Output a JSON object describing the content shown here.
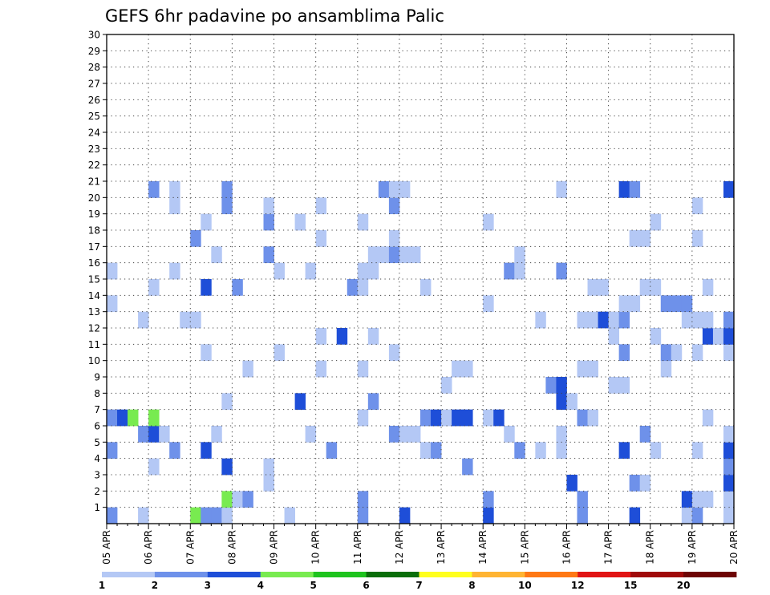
{
  "chart_data": {
    "type": "heatmap",
    "title": "GEFS 6hr padavine po ansamblima Palic",
    "x_tick_labels": [
      "05 APR",
      "06 APR",
      "07 APR",
      "08 APR",
      "09 APR",
      "10 APR",
      "11 APR",
      "12 APR",
      "13 APR",
      "14 APR",
      "15 APR",
      "16 APR",
      "17 APR",
      "18 APR",
      "19 APR",
      "20 APR"
    ],
    "y_tick_labels": [
      "1",
      "2",
      "3",
      "4",
      "5",
      "6",
      "7",
      "8",
      "9",
      "10",
      "11",
      "12",
      "13",
      "14",
      "15",
      "16",
      "17",
      "18",
      "19",
      "20",
      "21",
      "22",
      "23",
      "24",
      "25",
      "26",
      "27",
      "28",
      "29",
      "30"
    ],
    "steps_per_day": 4,
    "days_span": 15,
    "members": 30,
    "grid": "dotted",
    "legend_position": "bottom",
    "legend_labels": [
      "1",
      "2",
      "3",
      "4",
      "5",
      "6",
      "7",
      "8",
      "10",
      "12",
      "15",
      "20"
    ],
    "color_levels": [
      "#b4c8f5",
      "#6e91ea",
      "#1e4ed8",
      "#78eb50",
      "#1ec31e",
      "#0a6e0a",
      "#ffff1e",
      "#ffb432",
      "#ff7814",
      "#e11414",
      "#a00a0a",
      "#6e0505"
    ],
    "cells": [
      [
        0,
        0,
        1
      ],
      [
        0,
        3,
        0
      ],
      [
        0,
        8,
        3
      ],
      [
        0,
        9,
        1
      ],
      [
        0,
        10,
        1
      ],
      [
        0,
        11,
        0
      ],
      [
        0,
        17,
        0
      ],
      [
        0,
        24,
        1
      ],
      [
        0,
        28,
        2
      ],
      [
        0,
        36,
        2
      ],
      [
        0,
        45,
        1
      ],
      [
        0,
        50,
        2
      ],
      [
        0,
        55,
        0
      ],
      [
        0,
        56,
        1
      ],
      [
        0,
        59,
        0
      ],
      [
        1,
        11,
        3
      ],
      [
        1,
        12,
        0
      ],
      [
        1,
        13,
        1
      ],
      [
        1,
        24,
        1
      ],
      [
        1,
        36,
        1
      ],
      [
        1,
        45,
        1
      ],
      [
        1,
        55,
        2
      ],
      [
        1,
        56,
        0
      ],
      [
        1,
        57,
        0
      ],
      [
        1,
        59,
        0
      ],
      [
        2,
        15,
        0
      ],
      [
        2,
        44,
        2
      ],
      [
        2,
        50,
        1
      ],
      [
        2,
        51,
        0
      ],
      [
        2,
        59,
        2
      ],
      [
        3,
        4,
        0
      ],
      [
        3,
        11,
        2
      ],
      [
        3,
        15,
        0
      ],
      [
        3,
        34,
        1
      ],
      [
        3,
        59,
        1
      ],
      [
        4,
        0,
        1
      ],
      [
        4,
        6,
        1
      ],
      [
        4,
        9,
        2
      ],
      [
        4,
        21,
        1
      ],
      [
        4,
        30,
        0
      ],
      [
        4,
        31,
        1
      ],
      [
        4,
        39,
        1
      ],
      [
        4,
        41,
        0
      ],
      [
        4,
        43,
        0
      ],
      [
        4,
        49,
        2
      ],
      [
        4,
        52,
        0
      ],
      [
        4,
        56,
        0
      ],
      [
        4,
        59,
        2
      ],
      [
        5,
        3,
        1
      ],
      [
        5,
        4,
        2
      ],
      [
        5,
        5,
        0
      ],
      [
        5,
        10,
        0
      ],
      [
        5,
        19,
        0
      ],
      [
        5,
        27,
        1
      ],
      [
        5,
        28,
        0
      ],
      [
        5,
        29,
        0
      ],
      [
        5,
        38,
        0
      ],
      [
        5,
        43,
        0
      ],
      [
        5,
        51,
        1
      ],
      [
        5,
        59,
        0
      ],
      [
        6,
        0,
        1
      ],
      [
        6,
        1,
        2
      ],
      [
        6,
        2,
        3
      ],
      [
        6,
        4,
        3
      ],
      [
        6,
        24,
        0
      ],
      [
        6,
        30,
        1
      ],
      [
        6,
        31,
        2
      ],
      [
        6,
        32,
        0
      ],
      [
        6,
        33,
        2
      ],
      [
        6,
        34,
        2
      ],
      [
        6,
        36,
        0
      ],
      [
        6,
        37,
        2
      ],
      [
        6,
        45,
        1
      ],
      [
        6,
        46,
        0
      ],
      [
        6,
        57,
        0
      ],
      [
        7,
        11,
        0
      ],
      [
        7,
        18,
        2
      ],
      [
        7,
        25,
        1
      ],
      [
        7,
        43,
        2
      ],
      [
        7,
        44,
        0
      ],
      [
        8,
        32,
        0
      ],
      [
        8,
        42,
        1
      ],
      [
        8,
        43,
        2
      ],
      [
        8,
        48,
        0
      ],
      [
        8,
        49,
        0
      ],
      [
        9,
        13,
        0
      ],
      [
        9,
        20,
        0
      ],
      [
        9,
        24,
        0
      ],
      [
        9,
        33,
        0
      ],
      [
        9,
        34,
        0
      ],
      [
        9,
        45,
        0
      ],
      [
        9,
        46,
        0
      ],
      [
        9,
        53,
        0
      ],
      [
        10,
        9,
        0
      ],
      [
        10,
        16,
        0
      ],
      [
        10,
        27,
        0
      ],
      [
        10,
        49,
        1
      ],
      [
        10,
        53,
        1
      ],
      [
        10,
        54,
        0
      ],
      [
        10,
        56,
        0
      ],
      [
        10,
        59,
        0
      ],
      [
        11,
        20,
        0
      ],
      [
        11,
        22,
        2
      ],
      [
        11,
        25,
        0
      ],
      [
        11,
        48,
        0
      ],
      [
        11,
        52,
        0
      ],
      [
        11,
        57,
        2
      ],
      [
        11,
        58,
        0
      ],
      [
        11,
        59,
        2
      ],
      [
        12,
        3,
        0
      ],
      [
        12,
        7,
        0
      ],
      [
        12,
        8,
        0
      ],
      [
        12,
        41,
        0
      ],
      [
        12,
        45,
        0
      ],
      [
        12,
        46,
        0
      ],
      [
        12,
        47,
        2
      ],
      [
        12,
        48,
        0
      ],
      [
        12,
        49,
        1
      ],
      [
        12,
        55,
        0
      ],
      [
        12,
        56,
        0
      ],
      [
        12,
        57,
        0
      ],
      [
        12,
        59,
        1
      ],
      [
        13,
        0,
        0
      ],
      [
        13,
        36,
        0
      ],
      [
        13,
        49,
        0
      ],
      [
        13,
        50,
        0
      ],
      [
        13,
        53,
        1
      ],
      [
        13,
        54,
        1
      ],
      [
        13,
        55,
        1
      ],
      [
        14,
        4,
        0
      ],
      [
        14,
        9,
        2
      ],
      [
        14,
        12,
        1
      ],
      [
        14,
        23,
        1
      ],
      [
        14,
        24,
        0
      ],
      [
        14,
        30,
        0
      ],
      [
        14,
        46,
        0
      ],
      [
        14,
        47,
        0
      ],
      [
        14,
        51,
        0
      ],
      [
        14,
        52,
        0
      ],
      [
        14,
        57,
        0
      ],
      [
        15,
        0,
        0
      ],
      [
        15,
        6,
        0
      ],
      [
        15,
        16,
        0
      ],
      [
        15,
        19,
        0
      ],
      [
        15,
        24,
        0
      ],
      [
        15,
        25,
        0
      ],
      [
        15,
        38,
        1
      ],
      [
        15,
        39,
        0
      ],
      [
        15,
        43,
        1
      ],
      [
        16,
        10,
        0
      ],
      [
        16,
        15,
        1
      ],
      [
        16,
        25,
        0
      ],
      [
        16,
        26,
        0
      ],
      [
        16,
        27,
        1
      ],
      [
        16,
        28,
        0
      ],
      [
        16,
        29,
        0
      ],
      [
        16,
        39,
        0
      ],
      [
        17,
        8,
        1
      ],
      [
        17,
        20,
        0
      ],
      [
        17,
        27,
        0
      ],
      [
        17,
        50,
        0
      ],
      [
        17,
        51,
        0
      ],
      [
        17,
        56,
        0
      ],
      [
        18,
        9,
        0
      ],
      [
        18,
        15,
        1
      ],
      [
        18,
        18,
        0
      ],
      [
        18,
        24,
        0
      ],
      [
        18,
        36,
        0
      ],
      [
        18,
        52,
        0
      ],
      [
        19,
        6,
        0
      ],
      [
        19,
        11,
        1
      ],
      [
        19,
        15,
        0
      ],
      [
        19,
        20,
        0
      ],
      [
        19,
        27,
        1
      ],
      [
        19,
        56,
        0
      ],
      [
        20,
        4,
        1
      ],
      [
        20,
        6,
        0
      ],
      [
        20,
        11,
        1
      ],
      [
        20,
        26,
        1
      ],
      [
        20,
        27,
        0
      ],
      [
        20,
        28,
        0
      ],
      [
        20,
        43,
        0
      ],
      [
        20,
        49,
        2
      ],
      [
        20,
        50,
        1
      ],
      [
        20,
        59,
        2
      ]
    ]
  }
}
